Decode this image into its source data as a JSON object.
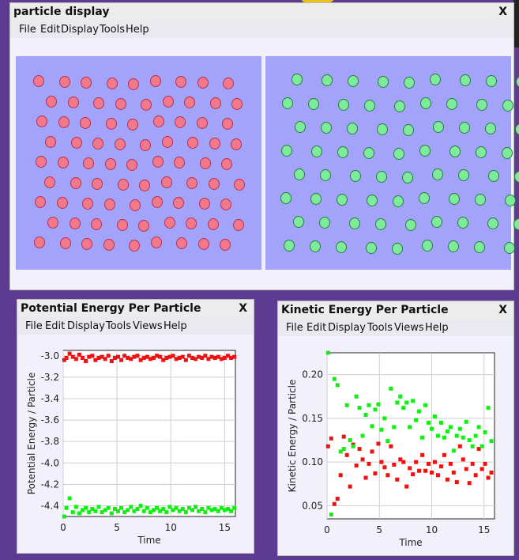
{
  "main_window": {
    "title": "particle display",
    "close": "X",
    "menu": [
      "File",
      "Edit",
      "Display",
      "Tools",
      "Help"
    ]
  },
  "pe_window": {
    "title": "Potential Energy Per Particle",
    "close": "X",
    "menu": [
      "File",
      "Edit",
      "Display",
      "Tools",
      "Views",
      "Help"
    ]
  },
  "ke_window": {
    "title": "Kinetic Energy Per Particle",
    "close": "X",
    "menu": [
      "File",
      "Edit",
      "Display",
      "Tools",
      "Views",
      "Help"
    ]
  },
  "colors": {
    "red_series": "#ee1111",
    "green_series": "#11ee11",
    "particle_pink": "#f2798c",
    "particle_green": "#7eea9c",
    "panel_bg": "#a3a3fb"
  },
  "chart_data": [
    {
      "type": "scatter",
      "xlabel": "Time",
      "ylabel": "Potential Energy / Particle",
      "xlim": [
        0,
        16
      ],
      "ylim": [
        -4.5,
        -2.95
      ],
      "xticks": [
        "0",
        "5",
        "10",
        "15"
      ],
      "yticks": [
        "-3.0",
        "-3.2",
        "-3.4",
        "-3.6",
        "-3.8",
        "-4.0",
        "-4.2",
        "-4.4"
      ],
      "grid": true,
      "series": [
        {
          "color": "#ee1111",
          "x": [
            0.1,
            0.3,
            0.6,
            0.9,
            1.2,
            1.5,
            1.8,
            2.1,
            2.4,
            2.7,
            3.0,
            3.3,
            3.6,
            3.9,
            4.2,
            4.5,
            4.8,
            5.1,
            5.4,
            5.7,
            6.0,
            6.3,
            6.6,
            6.9,
            7.2,
            7.5,
            7.8,
            8.1,
            8.4,
            8.7,
            9.0,
            9.3,
            9.6,
            9.9,
            10.2,
            10.5,
            10.8,
            11.1,
            11.4,
            11.7,
            12.0,
            12.3,
            12.6,
            12.9,
            13.2,
            13.5,
            13.8,
            14.1,
            14.4,
            14.7,
            15.0,
            15.3,
            15.6,
            15.9
          ],
          "y": [
            -3.04,
            -3.02,
            -2.98,
            -3.01,
            -3.03,
            -2.99,
            -3.02,
            -3.05,
            -3.01,
            -3.0,
            -3.04,
            -3.02,
            -3.01,
            -3.03,
            -3.0,
            -3.05,
            -3.02,
            -3.01,
            -3.04,
            -3.0,
            -3.02,
            -3.03,
            -3.01,
            -3.0,
            -3.04,
            -3.02,
            -3.01,
            -3.03,
            -3.02,
            -3.0,
            -3.01,
            -3.04,
            -3.02,
            -3.01,
            -3.0,
            -3.03,
            -3.02,
            -3.01,
            -3.04,
            -3.0,
            -3.02,
            -3.03,
            -3.01,
            -3.02,
            -3.0,
            -3.03,
            -3.01,
            -3.02,
            -3.01,
            -3.03,
            -3.02,
            -3.0,
            -3.02,
            -3.01
          ]
        },
        {
          "color": "#11ee11",
          "x": [
            0.1,
            0.3,
            0.6,
            0.9,
            1.2,
            1.5,
            1.8,
            2.1,
            2.4,
            2.7,
            3.0,
            3.3,
            3.6,
            3.9,
            4.2,
            4.5,
            4.8,
            5.1,
            5.4,
            5.7,
            6.0,
            6.3,
            6.6,
            6.9,
            7.2,
            7.5,
            7.8,
            8.1,
            8.4,
            8.7,
            9.0,
            9.3,
            9.6,
            9.9,
            10.2,
            10.5,
            10.8,
            11.1,
            11.4,
            11.7,
            12.0,
            12.3,
            12.6,
            12.9,
            13.2,
            13.5,
            13.8,
            14.1,
            14.4,
            14.7,
            15.0,
            15.3,
            15.6,
            15.9
          ],
          "y": [
            -4.5,
            -4.42,
            -4.33,
            -4.46,
            -4.41,
            -4.47,
            -4.44,
            -4.42,
            -4.46,
            -4.43,
            -4.45,
            -4.41,
            -4.46,
            -4.44,
            -4.42,
            -4.47,
            -4.43,
            -4.45,
            -4.42,
            -4.46,
            -4.44,
            -4.41,
            -4.45,
            -4.43,
            -4.4,
            -4.45,
            -4.42,
            -4.46,
            -4.44,
            -4.42,
            -4.45,
            -4.43,
            -4.46,
            -4.41,
            -4.44,
            -4.42,
            -4.45,
            -4.43,
            -4.46,
            -4.42,
            -4.44,
            -4.41,
            -4.45,
            -4.43,
            -4.46,
            -4.42,
            -4.44,
            -4.43,
            -4.45,
            -4.42,
            -4.44,
            -4.43,
            -4.45,
            -4.42
          ]
        }
      ]
    },
    {
      "type": "scatter",
      "xlabel": "Time",
      "ylabel": "Kinetic Energy / Particle",
      "xlim": [
        0,
        16
      ],
      "ylim": [
        0.035,
        0.225
      ],
      "xticks": [
        "0",
        "5",
        "10",
        "15"
      ],
      "yticks": [
        "0.20",
        "0.15",
        "0.10",
        "0.05"
      ],
      "grid": true,
      "series": [
        {
          "color": "#ee1111",
          "x": [
            0.1,
            0.4,
            0.7,
            1.0,
            1.3,
            1.6,
            1.9,
            2.2,
            2.5,
            2.8,
            3.1,
            3.4,
            3.7,
            4.0,
            4.3,
            4.6,
            4.9,
            5.2,
            5.5,
            5.8,
            6.1,
            6.4,
            6.7,
            7.0,
            7.3,
            7.6,
            7.9,
            8.2,
            8.5,
            8.8,
            9.1,
            9.4,
            9.7,
            10.0,
            10.3,
            10.6,
            10.9,
            11.2,
            11.5,
            11.8,
            12.1,
            12.4,
            12.7,
            13.0,
            13.3,
            13.6,
            13.9,
            14.2,
            14.5,
            14.8,
            15.1,
            15.4,
            15.7
          ],
          "y": [
            0.118,
            0.127,
            0.052,
            0.058,
            0.085,
            0.129,
            0.108,
            0.072,
            0.12,
            0.096,
            0.115,
            0.103,
            0.082,
            0.098,
            0.112,
            0.087,
            0.121,
            0.1,
            0.094,
            0.085,
            0.118,
            0.097,
            0.08,
            0.103,
            0.1,
            0.072,
            0.093,
            0.086,
            0.1,
            0.09,
            0.108,
            0.09,
            0.098,
            0.088,
            0.1,
            0.085,
            0.095,
            0.108,
            0.08,
            0.098,
            0.088,
            0.077,
            0.118,
            0.103,
            0.092,
            0.076,
            0.098,
            0.085,
            0.115,
            0.092,
            0.098,
            0.082,
            0.088
          ]
        },
        {
          "color": "#11ee11",
          "x": [
            0.1,
            0.4,
            0.7,
            1.0,
            1.3,
            1.6,
            1.9,
            2.2,
            2.5,
            2.8,
            3.1,
            3.4,
            3.7,
            4.0,
            4.3,
            4.6,
            4.9,
            5.2,
            5.5,
            5.8,
            6.1,
            6.4,
            6.7,
            7.0,
            7.3,
            7.6,
            7.9,
            8.2,
            8.5,
            8.8,
            9.1,
            9.4,
            9.7,
            10.0,
            10.3,
            10.6,
            10.9,
            11.2,
            11.5,
            11.8,
            12.1,
            12.4,
            12.7,
            13.0,
            13.3,
            13.6,
            13.9,
            14.2,
            14.5,
            14.8,
            15.1,
            15.4,
            15.7
          ],
          "y": [
            0.225,
            0.04,
            0.195,
            0.188,
            0.112,
            0.115,
            0.165,
            0.125,
            0.118,
            0.175,
            0.162,
            0.13,
            0.154,
            0.165,
            0.141,
            0.16,
            0.166,
            0.137,
            0.15,
            0.124,
            0.184,
            0.14,
            0.168,
            0.175,
            0.162,
            0.168,
            0.14,
            0.17,
            0.148,
            0.158,
            0.128,
            0.165,
            0.145,
            0.138,
            0.152,
            0.13,
            0.145,
            0.128,
            0.135,
            0.14,
            0.113,
            0.13,
            0.138,
            0.128,
            0.146,
            0.125,
            0.118,
            0.13,
            0.14,
            0.118,
            0.134,
            0.162,
            0.124
          ]
        }
      ]
    }
  ]
}
